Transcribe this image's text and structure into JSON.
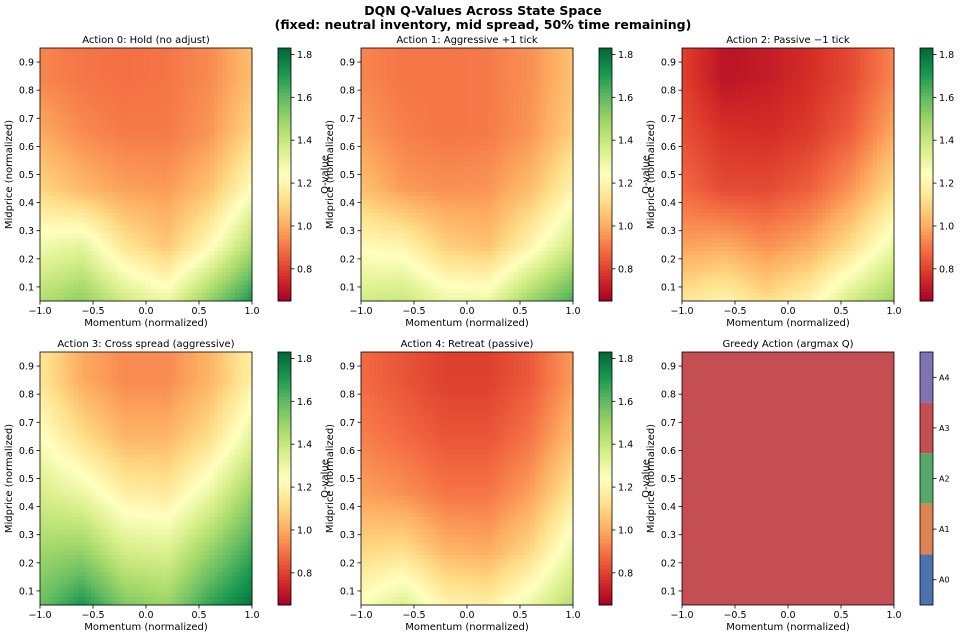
{
  "figure": {
    "title_line1": "DQN Q-Values Across State Space",
    "title_line2": "(fixed: neutral inventory, mid spread, 50% time remaining)"
  },
  "colormap": {
    "name": "RdYlGn",
    "stops": [
      "#a50026",
      "#d73027",
      "#f46d43",
      "#fdae61",
      "#fee08b",
      "#ffffbf",
      "#d9ef8b",
      "#a6d96a",
      "#66bd63",
      "#1a9850",
      "#006837"
    ]
  },
  "colorbar": {
    "label": "Q-value",
    "range": [
      0.65,
      1.83
    ],
    "ticks": [
      0.8,
      1.0,
      1.2,
      1.4,
      1.6,
      1.8
    ],
    "tick_labels": [
      "0.8",
      "1.0",
      "1.2",
      "1.4",
      "1.6",
      "1.8"
    ]
  },
  "chart_data": [
    {
      "type": "heatmap",
      "title": "Action 0: Hold (no adjust)",
      "xlabel": "Momentum (normalized)",
      "ylabel": "Midprice (normalized)",
      "xlim": [
        -1.0,
        1.0
      ],
      "ylim": [
        0.05,
        0.95
      ],
      "xticks": [
        -1.0,
        -0.5,
        0.0,
        0.5,
        1.0
      ],
      "xtick_labels": [
        "−1.0",
        "−0.5",
        "0.0",
        "0.5",
        "1.0"
      ],
      "yticks": [
        0.1,
        0.2,
        0.3,
        0.4,
        0.5,
        0.6,
        0.7,
        0.8,
        0.9
      ],
      "ytick_labels": [
        "0.1",
        "0.2",
        "0.3",
        "0.4",
        "0.5",
        "0.6",
        "0.7",
        "0.8",
        "0.9"
      ],
      "x": [
        -1.0,
        -0.6,
        -0.2,
        0.2,
        0.6,
        1.0
      ],
      "y": [
        0.05,
        0.25,
        0.45,
        0.65,
        0.85
      ],
      "z": [
        [
          1.45,
          1.52,
          1.38,
          1.3,
          1.52,
          1.72
        ],
        [
          1.28,
          1.32,
          1.14,
          1.06,
          1.22,
          1.45
        ],
        [
          1.1,
          1.03,
          0.98,
          0.97,
          1.05,
          1.24
        ],
        [
          1.0,
          0.94,
          0.91,
          0.91,
          0.96,
          1.1
        ],
        [
          0.93,
          0.9,
          0.89,
          0.9,
          0.94,
          1.04
        ]
      ]
    },
    {
      "type": "heatmap",
      "title": "Action 1: Aggressive +1 tick",
      "xlabel": "Momentum (normalized)",
      "ylabel": "Midprice (normalized)",
      "xlim": [
        -1.0,
        1.0
      ],
      "ylim": [
        0.05,
        0.95
      ],
      "xticks": [
        -1.0,
        -0.5,
        0.0,
        0.5,
        1.0
      ],
      "xtick_labels": [
        "−1.0",
        "−0.5",
        "0.0",
        "0.5",
        "1.0"
      ],
      "yticks": [
        0.1,
        0.2,
        0.3,
        0.4,
        0.5,
        0.6,
        0.7,
        0.8,
        0.9
      ],
      "ytick_labels": [
        "0.1",
        "0.2",
        "0.3",
        "0.4",
        "0.5",
        "0.6",
        "0.7",
        "0.8",
        "0.9"
      ],
      "x": [
        -1.0,
        -0.6,
        -0.2,
        0.2,
        0.6,
        1.0
      ],
      "y": [
        0.05,
        0.25,
        0.45,
        0.65,
        0.85
      ],
      "z": [
        [
          1.38,
          1.4,
          1.3,
          1.3,
          1.5,
          1.65
        ],
        [
          1.22,
          1.2,
          1.08,
          1.05,
          1.2,
          1.38
        ],
        [
          1.05,
          0.97,
          0.95,
          0.96,
          1.04,
          1.2
        ],
        [
          0.97,
          0.92,
          0.9,
          0.91,
          0.96,
          1.08
        ],
        [
          0.93,
          0.9,
          0.9,
          0.91,
          0.95,
          1.05
        ]
      ]
    },
    {
      "type": "heatmap",
      "title": "Action 2: Passive −1 tick",
      "xlabel": "Momentum (normalized)",
      "ylabel": "Midprice (normalized)",
      "xlim": [
        -1.0,
        1.0
      ],
      "ylim": [
        0.05,
        0.95
      ],
      "xticks": [
        -1.0,
        -0.5,
        0.0,
        0.5,
        1.0
      ],
      "xtick_labels": [
        "−1.0",
        "−0.5",
        "0.0",
        "0.5",
        "1.0"
      ],
      "yticks": [
        0.1,
        0.2,
        0.3,
        0.4,
        0.5,
        0.6,
        0.7,
        0.8,
        0.9
      ],
      "ytick_labels": [
        "0.1",
        "0.2",
        "0.3",
        "0.4",
        "0.5",
        "0.6",
        "0.7",
        "0.8",
        "0.9"
      ],
      "x": [
        -1.0,
        -0.6,
        -0.2,
        0.2,
        0.6,
        1.0
      ],
      "y": [
        0.05,
        0.25,
        0.45,
        0.65,
        0.85
      ],
      "z": [
        [
          1.15,
          1.2,
          1.12,
          1.2,
          1.38,
          1.5
        ],
        [
          0.98,
          1.0,
          0.95,
          1.0,
          1.12,
          1.3
        ],
        [
          0.88,
          0.82,
          0.82,
          0.86,
          0.96,
          1.12
        ],
        [
          0.83,
          0.77,
          0.76,
          0.79,
          0.86,
          1.0
        ],
        [
          0.8,
          0.7,
          0.72,
          0.76,
          0.82,
          0.93
        ]
      ]
    },
    {
      "type": "heatmap",
      "title": "Action 3: Cross spread (aggressive)",
      "xlabel": "Momentum (normalized)",
      "ylabel": "Midprice (normalized)",
      "xlim": [
        -1.0,
        1.0
      ],
      "ylim": [
        0.05,
        0.95
      ],
      "xticks": [
        -1.0,
        -0.5,
        0.0,
        0.5,
        1.0
      ],
      "xtick_labels": [
        "−1.0",
        "−0.5",
        "0.0",
        "0.5",
        "1.0"
      ],
      "yticks": [
        0.1,
        0.2,
        0.3,
        0.4,
        0.5,
        0.6,
        0.7,
        0.8,
        0.9
      ],
      "ytick_labels": [
        "0.1",
        "0.2",
        "0.3",
        "0.4",
        "0.5",
        "0.6",
        "0.7",
        "0.8",
        "0.9"
      ],
      "x": [
        -1.0,
        -0.6,
        -0.2,
        0.2,
        0.6,
        1.0
      ],
      "y": [
        0.05,
        0.25,
        0.45,
        0.65,
        0.85
      ],
      "z": [
        [
          1.58,
          1.72,
          1.55,
          1.5,
          1.68,
          1.8
        ],
        [
          1.48,
          1.5,
          1.36,
          1.34,
          1.5,
          1.66
        ],
        [
          1.36,
          1.3,
          1.18,
          1.16,
          1.3,
          1.5
        ],
        [
          1.25,
          1.12,
          1.02,
          1.02,
          1.12,
          1.32
        ],
        [
          1.15,
          1.0,
          0.94,
          0.94,
          1.02,
          1.18
        ]
      ]
    },
    {
      "type": "heatmap",
      "title": "Action 4: Retreat (passive)",
      "xlabel": "Momentum (normalized)",
      "ylabel": "Midprice (normalized)",
      "xlim": [
        -1.0,
        1.0
      ],
      "ylim": [
        0.05,
        0.95
      ],
      "xticks": [
        -1.0,
        -0.5,
        0.0,
        0.5,
        1.0
      ],
      "xtick_labels": [
        "−1.0",
        "−0.5",
        "0.0",
        "0.5",
        "1.0"
      ],
      "yticks": [
        0.1,
        0.2,
        0.3,
        0.4,
        0.5,
        0.6,
        0.7,
        0.8,
        0.9
      ],
      "ytick_labels": [
        "0.1",
        "0.2",
        "0.3",
        "0.4",
        "0.5",
        "0.6",
        "0.7",
        "0.8",
        "0.9"
      ],
      "x": [
        -1.0,
        -0.6,
        -0.2,
        0.2,
        0.6,
        1.0
      ],
      "y": [
        0.05,
        0.25,
        0.45,
        0.65,
        0.85
      ],
      "z": [
        [
          1.25,
          1.35,
          1.2,
          1.18,
          1.3,
          1.45
        ],
        [
          1.1,
          1.12,
          1.02,
          1.0,
          1.1,
          1.3
        ],
        [
          0.98,
          0.95,
          0.9,
          0.9,
          0.98,
          1.15
        ],
        [
          0.92,
          0.88,
          0.84,
          0.84,
          0.9,
          1.04
        ],
        [
          0.88,
          0.84,
          0.8,
          0.8,
          0.85,
          0.97
        ]
      ]
    },
    {
      "type": "heatmap",
      "title": "Greedy Action (argmax Q)",
      "xlabel": "Momentum (normalized)",
      "ylabel": "Midprice (normalized)",
      "xlim": [
        -1.0,
        1.0
      ],
      "ylim": [
        0.05,
        0.95
      ],
      "xticks": [
        -1.0,
        -0.5,
        0.0,
        0.5,
        1.0
      ],
      "xtick_labels": [
        "−1.0",
        "−0.5",
        "0.0",
        "0.5",
        "1.0"
      ],
      "yticks": [
        0.1,
        0.2,
        0.3,
        0.4,
        0.5,
        0.6,
        0.7,
        0.8,
        0.9
      ],
      "ytick_labels": [
        "0.1",
        "0.2",
        "0.3",
        "0.4",
        "0.5",
        "0.6",
        "0.7",
        "0.8",
        "0.9"
      ],
      "greedy_action": "A3",
      "categories": [
        "A0",
        "A1",
        "A2",
        "A3",
        "A4"
      ],
      "category_colors": [
        "#4c72b0",
        "#dd8452",
        "#55a868",
        "#c44e52",
        "#8172b3"
      ]
    }
  ]
}
